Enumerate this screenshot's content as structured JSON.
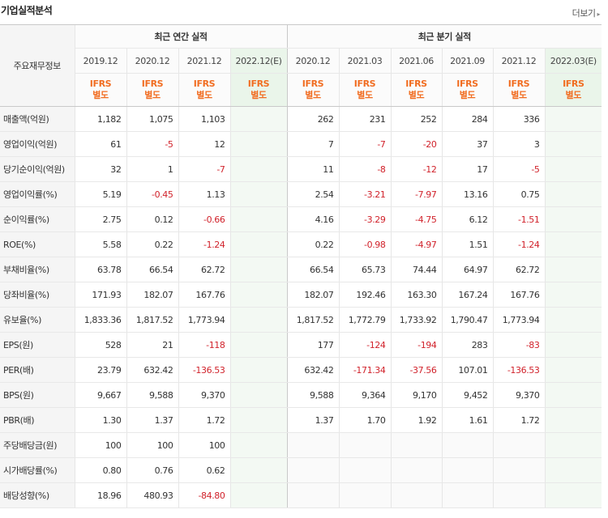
{
  "header": {
    "title": "기업실적분석",
    "more_label": "더보기"
  },
  "table": {
    "row_header_label": "주요재무정보",
    "annual_label": "최근 연간 실적",
    "quarterly_label": "최근 분기 실적",
    "annual_periods": [
      "2019.12",
      "2020.12",
      "2021.12",
      "2022.12(E)"
    ],
    "quarterly_periods": [
      "2020.12",
      "2021.03",
      "2021.06",
      "2021.09",
      "2021.12",
      "2022.03(E)"
    ],
    "basis_line1": "IFRS",
    "basis_line2": "별도",
    "rows": [
      {
        "label": "매출액(억원)",
        "annual": [
          "1,182",
          "1,075",
          "1,103",
          ""
        ],
        "quarterly": [
          "262",
          "231",
          "252",
          "284",
          "336",
          ""
        ]
      },
      {
        "label": "영업이익(억원)",
        "annual": [
          "61",
          "-5",
          "12",
          ""
        ],
        "quarterly": [
          "7",
          "-7",
          "-20",
          "37",
          "3",
          ""
        ]
      },
      {
        "label": "당기순이익(억원)",
        "annual": [
          "32",
          "1",
          "-7",
          ""
        ],
        "quarterly": [
          "11",
          "-8",
          "-12",
          "17",
          "-5",
          ""
        ]
      },
      {
        "label": "영업이익률(%)",
        "annual": [
          "5.19",
          "-0.45",
          "1.13",
          ""
        ],
        "quarterly": [
          "2.54",
          "-3.21",
          "-7.97",
          "13.16",
          "0.75",
          ""
        ]
      },
      {
        "label": "순이익률(%)",
        "annual": [
          "2.75",
          "0.12",
          "-0.66",
          ""
        ],
        "quarterly": [
          "4.16",
          "-3.29",
          "-4.75",
          "6.12",
          "-1.51",
          ""
        ]
      },
      {
        "label": "ROE(%)",
        "annual": [
          "5.58",
          "0.22",
          "-1.24",
          ""
        ],
        "quarterly": [
          "0.22",
          "-0.98",
          "-4.97",
          "1.51",
          "-1.24",
          ""
        ]
      },
      {
        "label": "부채비율(%)",
        "annual": [
          "63.78",
          "66.54",
          "62.72",
          ""
        ],
        "quarterly": [
          "66.54",
          "65.73",
          "74.44",
          "64.97",
          "62.72",
          ""
        ]
      },
      {
        "label": "당좌비율(%)",
        "annual": [
          "171.93",
          "182.07",
          "167.76",
          ""
        ],
        "quarterly": [
          "182.07",
          "192.46",
          "163.30",
          "167.24",
          "167.76",
          ""
        ]
      },
      {
        "label": "유보율(%)",
        "annual": [
          "1,833.36",
          "1,817.52",
          "1,773.94",
          ""
        ],
        "quarterly": [
          "1,817.52",
          "1,772.79",
          "1,733.92",
          "1,790.47",
          "1,773.94",
          ""
        ]
      },
      {
        "label": "EPS(원)",
        "annual": [
          "528",
          "21",
          "-118",
          ""
        ],
        "quarterly": [
          "177",
          "-124",
          "-194",
          "283",
          "-83",
          ""
        ]
      },
      {
        "label": "PER(배)",
        "annual": [
          "23.79",
          "632.42",
          "-136.53",
          ""
        ],
        "quarterly": [
          "632.42",
          "-171.34",
          "-37.56",
          "107.01",
          "-136.53",
          ""
        ]
      },
      {
        "label": "BPS(원)",
        "annual": [
          "9,667",
          "9,588",
          "9,370",
          ""
        ],
        "quarterly": [
          "9,588",
          "9,364",
          "9,170",
          "9,452",
          "9,370",
          ""
        ]
      },
      {
        "label": "PBR(배)",
        "annual": [
          "1.30",
          "1.37",
          "1.72",
          ""
        ],
        "quarterly": [
          "1.37",
          "1.70",
          "1.92",
          "1.61",
          "1.72",
          ""
        ]
      },
      {
        "label": "주당배당금(원)",
        "annual": [
          "100",
          "100",
          "100",
          ""
        ],
        "quarterly": [
          "",
          "",
          "",
          "",
          "",
          ""
        ]
      },
      {
        "label": "시가배당률(%)",
        "annual": [
          "0.80",
          "0.76",
          "0.62",
          ""
        ],
        "quarterly": [
          "",
          "",
          "",
          "",
          "",
          ""
        ]
      },
      {
        "label": "배당성향(%)",
        "annual": [
          "18.96",
          "480.93",
          "-84.80",
          ""
        ],
        "quarterly": [
          "",
          "",
          "",
          "",
          "",
          ""
        ]
      }
    ]
  },
  "colors": {
    "accent_orange": "#f16d21",
    "negative_red": "#d1222b",
    "estimate_bg": "#f3f9f3"
  }
}
